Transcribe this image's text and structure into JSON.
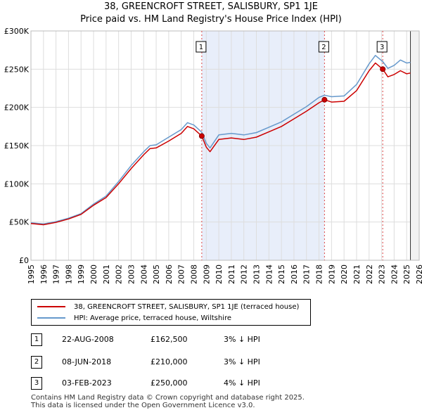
{
  "chart_data": {
    "type": "line",
    "title": "38, GREENCROFT STREET, SALISBURY, SP1 1JE",
    "subtitle": "Price paid vs. HM Land Registry's House Price Index (HPI)",
    "xlim": [
      1995,
      2026
    ],
    "ylim": [
      0,
      300000
    ],
    "x_ticks": [
      1995,
      1996,
      1997,
      1998,
      1999,
      2000,
      2001,
      2002,
      2003,
      2004,
      2005,
      2006,
      2007,
      2008,
      2009,
      2010,
      2011,
      2012,
      2013,
      2014,
      2015,
      2016,
      2017,
      2018,
      2019,
      2020,
      2021,
      2022,
      2023,
      2024,
      2025,
      2026
    ],
    "y_ticks": [
      0,
      50000,
      100000,
      150000,
      200000,
      250000,
      300000
    ],
    "y_tick_labels": [
      "£0",
      "£50K",
      "£100K",
      "£150K",
      "£200K",
      "£250K",
      "£300K"
    ],
    "grid": true,
    "series": [
      {
        "name": "38, GREENCROFT STREET, SALISBURY, SP1 1JE (terraced house)",
        "color": "#cc0000",
        "x": [
          1995.0,
          1996.0,
          1997.0,
          1998.0,
          1999.0,
          2000.0,
          2001.0,
          2002.0,
          2003.0,
          2004.0,
          2004.5,
          2005.0,
          2006.0,
          2007.0,
          2007.5,
          2008.0,
          2008.64,
          2009.0,
          2009.3,
          2010.0,
          2011.0,
          2012.0,
          2013.0,
          2014.0,
          2015.0,
          2016.0,
          2017.0,
          2018.0,
          2018.44,
          2019.0,
          2020.0,
          2021.0,
          2022.0,
          2022.5,
          2023.09,
          2023.5,
          2024.0,
          2024.5,
          2025.0,
          2025.3
        ],
        "values": [
          48000,
          46500,
          49500,
          54000,
          60000,
          72000,
          82000,
          100000,
          120000,
          138000,
          146000,
          147000,
          156000,
          166000,
          175000,
          172000,
          162500,
          148000,
          142000,
          158000,
          160000,
          158000,
          161000,
          168000,
          175000,
          185000,
          195000,
          206000,
          210000,
          207000,
          208000,
          222000,
          248000,
          258000,
          250000,
          240000,
          243000,
          248000,
          244000,
          245000
        ]
      },
      {
        "name": "HPI: Average price, terraced house, Wiltshire",
        "color": "#6699cc",
        "x": [
          1995.0,
          1996.0,
          1997.0,
          1998.0,
          1999.0,
          2000.0,
          2001.0,
          2002.0,
          2003.0,
          2004.0,
          2004.5,
          2005.0,
          2006.0,
          2007.0,
          2007.5,
          2008.0,
          2008.64,
          2009.0,
          2009.3,
          2010.0,
          2011.0,
          2012.0,
          2013.0,
          2014.0,
          2015.0,
          2016.0,
          2017.0,
          2018.0,
          2018.44,
          2019.0,
          2020.0,
          2021.0,
          2022.0,
          2022.5,
          2023.09,
          2023.5,
          2024.0,
          2024.5,
          2025.0,
          2025.3
        ],
        "values": [
          49000,
          47500,
          50500,
          55000,
          61000,
          73500,
          84000,
          103000,
          124000,
          142000,
          150000,
          151000,
          161000,
          171000,
          180000,
          177000,
          167500,
          153000,
          147000,
          164000,
          166000,
          164000,
          167000,
          174000,
          181000,
          191000,
          201000,
          213000,
          216000,
          214000,
          215000,
          230000,
          257000,
          268000,
          260000,
          251000,
          255000,
          262000,
          258000,
          259000
        ]
      }
    ],
    "sale_markers": [
      {
        "label": "1",
        "x": 2008.64,
        "value": 162500
      },
      {
        "label": "2",
        "x": 2018.44,
        "value": 210000
      },
      {
        "label": "3",
        "x": 2023.09,
        "value": 250000
      }
    ],
    "shaded_region": [
      2008.64,
      2018.44
    ],
    "future_start": 2025.3
  },
  "legend": {
    "property_label": "38, GREENCROFT STREET, SALISBURY, SP1 1JE (terraced house)",
    "hpi_label": "HPI: Average price, terraced house, Wiltshire",
    "property_color": "#cc0000",
    "hpi_color": "#6699cc"
  },
  "sales": [
    {
      "num": "1",
      "date": "22-AUG-2008",
      "price": "£162,500",
      "hpi": "3% ↓ HPI"
    },
    {
      "num": "2",
      "date": "08-JUN-2018",
      "price": "£210,000",
      "hpi": "3% ↓ HPI"
    },
    {
      "num": "3",
      "date": "03-FEB-2023",
      "price": "£250,000",
      "hpi": "4% ↓ HPI"
    }
  ],
  "footer": {
    "line1": "Contains HM Land Registry data © Crown copyright and database right 2025.",
    "line2": "This data is licensed under the Open Government Licence v3.0."
  }
}
